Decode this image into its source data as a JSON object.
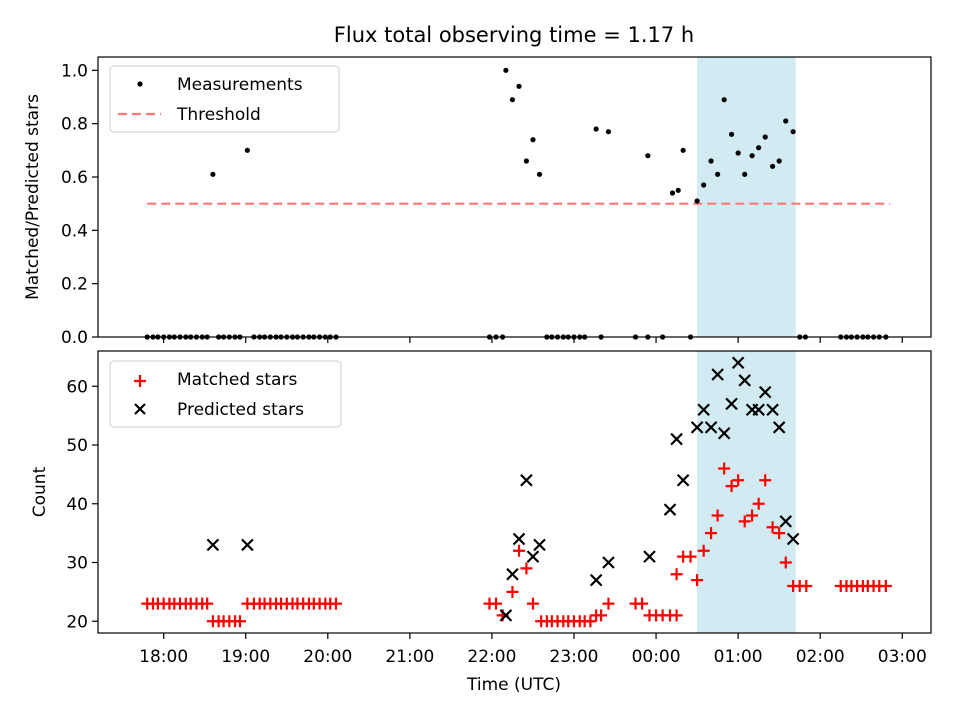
{
  "chart_data": {
    "type": "scatter",
    "title": "Flux total observing time = 1.17 h",
    "xlabel": "Time (UTC)",
    "x_tick_labels": [
      "18:00",
      "19:00",
      "20:00",
      "21:00",
      "22:00",
      "23:00",
      "00:00",
      "01:00",
      "02:00",
      "03:00"
    ],
    "x_tick_hours": [
      18,
      19,
      20,
      21,
      22,
      23,
      24,
      25,
      26,
      27
    ],
    "xlim": [
      17.2,
      27.35
    ],
    "highlight_span": [
      24.5,
      25.7
    ],
    "colors": {
      "measurements": "#000000",
      "threshold": "#ff7777",
      "matched": "#ff0000",
      "predicted": "#000000",
      "span": "#add8e6"
    },
    "panels": [
      {
        "id": "top",
        "ylabel": "Matched/Predicted stars",
        "ylim": [
          0,
          1.05
        ],
        "yticks": [
          0,
          0.2,
          0.4,
          0.6,
          0.8,
          1.0
        ],
        "ytick_labels": [
          "0.0",
          "0.2",
          "0.4",
          "0.6",
          "0.8",
          "1.0"
        ],
        "legend_position": "upper-left",
        "legend": [
          {
            "label": "Measurements",
            "marker": "dot",
            "color": "#000000"
          },
          {
            "label": "Threshold",
            "marker": "dash",
            "color": "#ff7777"
          }
        ],
        "threshold": {
          "y": 0.5,
          "x_range": [
            17.8,
            26.85
          ]
        },
        "measurements": [
          [
            17.8,
            0
          ],
          [
            17.87,
            0
          ],
          [
            17.93,
            0
          ],
          [
            18,
            0
          ],
          [
            18.07,
            0
          ],
          [
            18.13,
            0
          ],
          [
            18.2,
            0
          ],
          [
            18.27,
            0
          ],
          [
            18.33,
            0
          ],
          [
            18.4,
            0
          ],
          [
            18.47,
            0
          ],
          [
            18.53,
            0
          ],
          [
            18.6,
            0.61
          ],
          [
            18.67,
            0
          ],
          [
            18.73,
            0
          ],
          [
            18.8,
            0
          ],
          [
            18.87,
            0
          ],
          [
            18.93,
            0
          ],
          [
            19.02,
            0.7
          ],
          [
            19.1,
            0
          ],
          [
            19.17,
            0
          ],
          [
            19.23,
            0
          ],
          [
            19.3,
            0
          ],
          [
            19.37,
            0
          ],
          [
            19.43,
            0
          ],
          [
            19.5,
            0
          ],
          [
            19.57,
            0
          ],
          [
            19.63,
            0
          ],
          [
            19.7,
            0
          ],
          [
            19.77,
            0
          ],
          [
            19.83,
            0
          ],
          [
            19.9,
            0
          ],
          [
            19.97,
            0
          ],
          [
            20.03,
            0
          ],
          [
            20.1,
            0
          ],
          [
            21.97,
            0
          ],
          [
            22.05,
            0
          ],
          [
            22.13,
            0
          ],
          [
            22.17,
            1.0
          ],
          [
            22.25,
            0.89
          ],
          [
            22.33,
            0.94
          ],
          [
            22.42,
            0.66
          ],
          [
            22.5,
            0.74
          ],
          [
            22.58,
            0.61
          ],
          [
            22.67,
            0
          ],
          [
            22.73,
            0
          ],
          [
            22.8,
            0
          ],
          [
            22.87,
            0
          ],
          [
            22.93,
            0
          ],
          [
            23,
            0
          ],
          [
            23.07,
            0
          ],
          [
            23.13,
            0
          ],
          [
            23.27,
            0.78
          ],
          [
            23.33,
            0
          ],
          [
            23.42,
            0.77
          ],
          [
            23.75,
            0
          ],
          [
            23.9,
            0.68
          ],
          [
            23.9,
            0
          ],
          [
            24.08,
            0
          ],
          [
            24.2,
            0.54
          ],
          [
            24.27,
            0.55
          ],
          [
            24.33,
            0.7
          ],
          [
            24.42,
            0
          ],
          [
            24.5,
            0.51
          ],
          [
            24.58,
            0.57
          ],
          [
            24.67,
            0.66
          ],
          [
            24.75,
            0.61
          ],
          [
            24.83,
            0.89
          ],
          [
            24.92,
            0.76
          ],
          [
            25,
            0.69
          ],
          [
            25.08,
            0.61
          ],
          [
            25.17,
            0.68
          ],
          [
            25.25,
            0.71
          ],
          [
            25.33,
            0.75
          ],
          [
            25.42,
            0.64
          ],
          [
            25.5,
            0.66
          ],
          [
            25.58,
            0.81
          ],
          [
            25.67,
            0.77
          ],
          [
            25.75,
            0
          ],
          [
            25.82,
            0
          ],
          [
            26.25,
            0
          ],
          [
            26.32,
            0
          ],
          [
            26.38,
            0
          ],
          [
            26.45,
            0
          ],
          [
            26.52,
            0
          ],
          [
            26.58,
            0
          ],
          [
            26.65,
            0
          ],
          [
            26.72,
            0
          ],
          [
            26.8,
            0
          ]
        ]
      },
      {
        "id": "bottom",
        "ylabel": "Count",
        "ylim": [
          18,
          66
        ],
        "yticks": [
          20,
          30,
          40,
          50,
          60
        ],
        "ytick_labels": [
          "20",
          "30",
          "40",
          "50",
          "60"
        ],
        "legend_position": "upper-left",
        "legend": [
          {
            "label": "Matched stars",
            "marker": "plus",
            "color": "#ff0000"
          },
          {
            "label": "Predicted stars",
            "marker": "x",
            "color": "#000000"
          }
        ],
        "series": [
          {
            "name": "Matched stars",
            "marker": "plus",
            "color": "#ff0000",
            "points": [
              [
                17.8,
                23
              ],
              [
                17.87,
                23
              ],
              [
                17.93,
                23
              ],
              [
                18,
                23
              ],
              [
                18.07,
                23
              ],
              [
                18.13,
                23
              ],
              [
                18.2,
                23
              ],
              [
                18.27,
                23
              ],
              [
                18.33,
                23
              ],
              [
                18.4,
                23
              ],
              [
                18.47,
                23
              ],
              [
                18.53,
                23
              ],
              [
                18.6,
                20
              ],
              [
                18.67,
                20
              ],
              [
                18.73,
                20
              ],
              [
                18.8,
                20
              ],
              [
                18.87,
                20
              ],
              [
                18.93,
                20
              ],
              [
                19.02,
                23
              ],
              [
                19.1,
                23
              ],
              [
                19.17,
                23
              ],
              [
                19.23,
                23
              ],
              [
                19.3,
                23
              ],
              [
                19.37,
                23
              ],
              [
                19.43,
                23
              ],
              [
                19.5,
                23
              ],
              [
                19.57,
                23
              ],
              [
                19.63,
                23
              ],
              [
                19.7,
                23
              ],
              [
                19.77,
                23
              ],
              [
                19.83,
                23
              ],
              [
                19.9,
                23
              ],
              [
                19.97,
                23
              ],
              [
                20.03,
                23
              ],
              [
                20.1,
                23
              ],
              [
                21.97,
                23
              ],
              [
                22.05,
                23
              ],
              [
                22.13,
                21
              ],
              [
                22.25,
                25
              ],
              [
                22.33,
                32
              ],
              [
                22.42,
                29
              ],
              [
                22.5,
                23
              ],
              [
                22.6,
                20
              ],
              [
                22.67,
                20
              ],
              [
                22.73,
                20
              ],
              [
                22.8,
                20
              ],
              [
                22.87,
                20
              ],
              [
                22.93,
                20
              ],
              [
                23,
                20
              ],
              [
                23.07,
                20
              ],
              [
                23.13,
                20
              ],
              [
                23.2,
                20
              ],
              [
                23.27,
                21
              ],
              [
                23.33,
                21
              ],
              [
                23.42,
                23
              ],
              [
                23.75,
                23
              ],
              [
                23.83,
                23
              ],
              [
                23.92,
                21
              ],
              [
                24,
                21
              ],
              [
                24.08,
                21
              ],
              [
                24.17,
                21
              ],
              [
                24.25,
                21
              ],
              [
                24.25,
                28
              ],
              [
                24.33,
                31
              ],
              [
                24.42,
                31
              ],
              [
                24.5,
                27
              ],
              [
                24.58,
                32
              ],
              [
                24.67,
                35
              ],
              [
                24.75,
                38
              ],
              [
                24.83,
                46
              ],
              [
                24.92,
                43
              ],
              [
                25,
                44
              ],
              [
                25.08,
                37
              ],
              [
                25.17,
                38
              ],
              [
                25.25,
                40
              ],
              [
                25.33,
                44
              ],
              [
                25.42,
                36
              ],
              [
                25.5,
                35
              ],
              [
                25.58,
                30
              ],
              [
                25.67,
                26
              ],
              [
                25.75,
                26
              ],
              [
                25.83,
                26
              ],
              [
                26.25,
                26
              ],
              [
                26.32,
                26
              ],
              [
                26.38,
                26
              ],
              [
                26.45,
                26
              ],
              [
                26.52,
                26
              ],
              [
                26.58,
                26
              ],
              [
                26.65,
                26
              ],
              [
                26.72,
                26
              ],
              [
                26.8,
                26
              ]
            ]
          },
          {
            "name": "Predicted stars",
            "marker": "x",
            "color": "#000000",
            "points": [
              [
                18.6,
                33
              ],
              [
                19.02,
                33
              ],
              [
                22.17,
                21
              ],
              [
                22.25,
                28
              ],
              [
                22.33,
                34
              ],
              [
                22.42,
                44
              ],
              [
                22.5,
                31
              ],
              [
                22.58,
                33
              ],
              [
                23.27,
                27
              ],
              [
                23.42,
                30
              ],
              [
                23.92,
                31
              ],
              [
                24.17,
                39
              ],
              [
                24.25,
                51
              ],
              [
                24.33,
                44
              ],
              [
                24.5,
                53
              ],
              [
                24.58,
                56
              ],
              [
                24.67,
                53
              ],
              [
                24.75,
                62
              ],
              [
                24.83,
                52
              ],
              [
                24.92,
                57
              ],
              [
                25,
                64
              ],
              [
                25.08,
                61
              ],
              [
                25.17,
                56
              ],
              [
                25.25,
                56
              ],
              [
                25.33,
                59
              ],
              [
                25.42,
                56
              ],
              [
                25.5,
                53
              ],
              [
                25.58,
                37
              ],
              [
                25.67,
                34
              ]
            ]
          }
        ]
      }
    ]
  }
}
